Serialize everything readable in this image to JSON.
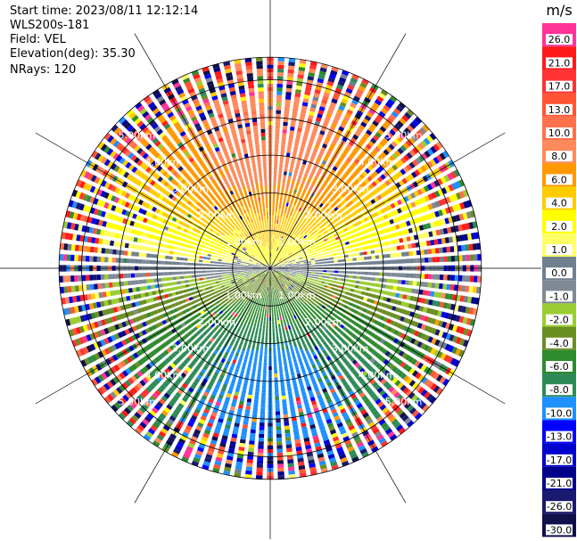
{
  "header": {
    "start_time": "Start time: 2023/08/11 12:12:14",
    "instrument": "WLS200s-181",
    "field": "Field: VEL",
    "elevation": "Elevation(deg): 35.30",
    "nrays": "NRays: 120"
  },
  "colorbar": {
    "unit": "m/s",
    "bins": [
      {
        "label": "26.0",
        "color": "#ff3399"
      },
      {
        "label": "21.0",
        "color": "#ff1a1a"
      },
      {
        "label": "17.0",
        "color": "#ff3333"
      },
      {
        "label": "13.0",
        "color": "#ff5533"
      },
      {
        "label": "10.0",
        "color": "#ff704d"
      },
      {
        "label": "8.0",
        "color": "#ff8a5c"
      },
      {
        "label": "6.0",
        "color": "#ff9900"
      },
      {
        "label": "4.0",
        "color": "#ffcc00"
      },
      {
        "label": "2.0",
        "color": "#ffff00"
      },
      {
        "label": "1.0",
        "color": "#ffff66"
      },
      {
        "label": "0.0",
        "color": "#708090"
      },
      {
        "label": "-1.0",
        "color": "#808a96"
      },
      {
        "label": "-2.0",
        "color": "#9acd32"
      },
      {
        "label": "-4.0",
        "color": "#6b8e23"
      },
      {
        "label": "-6.0",
        "color": "#2e8b2e"
      },
      {
        "label": "-8.0",
        "color": "#2e8b57"
      },
      {
        "label": "-10.0",
        "color": "#1e90ff"
      },
      {
        "label": "-13.0",
        "color": "#0000ff"
      },
      {
        "label": "-17.0",
        "color": "#0000cd"
      },
      {
        "label": "-21.0",
        "color": "#00008b"
      },
      {
        "label": "-26.0",
        "color": "#191970"
      },
      {
        "label": "-30.0",
        "color": "#10104a"
      }
    ]
  },
  "chart_data": {
    "type": "heatmap",
    "projection": "polar-ppi",
    "field": "VEL",
    "nrays": 120,
    "range_rings_km": [
      1.0,
      2.0,
      3.0,
      4.0,
      5.0
    ],
    "ring_labels": [
      "1.00km",
      "2.00km",
      "3.00km",
      "4.00km",
      "5.00km"
    ],
    "max_range_km": 5.6,
    "spokes_deg": [
      0,
      30,
      60,
      90,
      120,
      150,
      180,
      210,
      240,
      270,
      300,
      330
    ],
    "velocity_pattern": {
      "north_sector": "positive (2 to 10 m/s, increasing with range)",
      "south_sector": "negative (-2 to -8 m/s, increasing with range)",
      "east_west": "near zero (-1 to 1 m/s)",
      "outer_range_km": "noisy beyond ~4.6 km"
    }
  }
}
